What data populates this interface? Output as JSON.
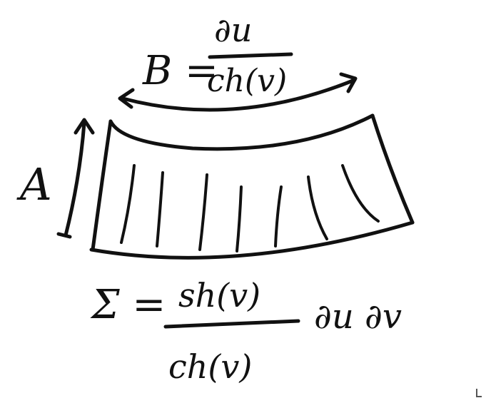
{
  "labels": {
    "height_label": "A",
    "width_label": "B =",
    "width_numerator": "∂u",
    "width_denominator": "ch(v)",
    "area_label": "Σ =",
    "area_numerator": "sh(v)",
    "area_denominator": "ch(v)",
    "area_differential": "∂u ∂v"
  },
  "colors": {
    "ink": "#111111",
    "background": "#ffffff"
  }
}
